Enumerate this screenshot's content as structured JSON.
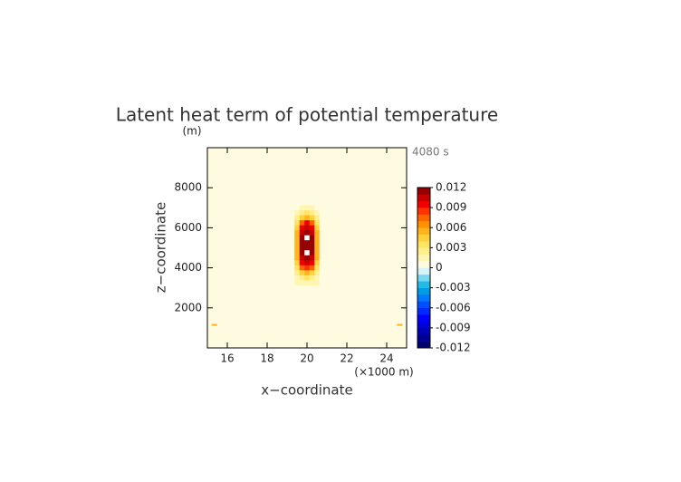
{
  "chart_data": {
    "type": "contour",
    "title": "Latent heat term of potential temperature",
    "y_unit_label": "(m)",
    "time_label": "4080 s",
    "xlabel": "x−coordinate",
    "ylabel": "z−coordinate",
    "x_unit_label": "(×1000 m)",
    "xlim": [
      15,
      25
    ],
    "xticks": [
      16,
      18,
      20,
      22,
      24
    ],
    "ylim": [
      0,
      10000
    ],
    "yticks": [
      2000,
      4000,
      6000,
      8000
    ],
    "field": {
      "fill_value": 0.0005,
      "x": [
        19.25,
        19.5,
        19.75,
        20,
        20.25,
        20.5,
        20.75
      ],
      "z": [
        7000,
        6750,
        6500,
        6250,
        6000,
        5750,
        5500,
        5250,
        5000,
        4750,
        4500,
        4250,
        4000,
        3750,
        3500,
        3250
      ],
      "values": [
        [
          0.0005,
          0.0005,
          0.0015,
          0.0015,
          0.0015,
          0.0005,
          0.0005
        ],
        [
          0.0005,
          0.0015,
          0.0025,
          0.003,
          0.0025,
          0.0015,
          0.0005
        ],
        [
          0.0005,
          0.002,
          0.004,
          0.005,
          0.004,
          0.002,
          0.0005
        ],
        [
          0.0005,
          0.003,
          0.007,
          0.009,
          0.007,
          0.003,
          0.0005
        ],
        [
          0.0005,
          0.004,
          0.009,
          0.0105,
          0.009,
          0.004,
          0.0005
        ],
        [
          0.0005,
          0.005,
          0.0105,
          0.0115,
          0.0105,
          0.005,
          0.0005
        ],
        [
          0.0005,
          0.005,
          0.011,
          0.013,
          0.011,
          0.005,
          0.0005
        ],
        [
          0.0005,
          0.005,
          0.011,
          0.0115,
          0.011,
          0.005,
          0.0005
        ],
        [
          0.0005,
          0.005,
          0.011,
          0.0115,
          0.011,
          0.005,
          0.0005
        ],
        [
          0.0005,
          0.005,
          0.011,
          0.013,
          0.011,
          0.005,
          0.0005
        ],
        [
          0.0005,
          0.005,
          0.0105,
          0.0115,
          0.0105,
          0.005,
          0.0005
        ],
        [
          0.0005,
          0.004,
          0.009,
          0.0105,
          0.009,
          0.004,
          0.0005
        ],
        [
          0.0005,
          0.003,
          0.007,
          0.008,
          0.007,
          0.003,
          0.0005
        ],
        [
          0.0005,
          0.002,
          0.004,
          0.005,
          0.004,
          0.002,
          0.0005
        ],
        [
          0.0005,
          0.0015,
          0.0025,
          0.003,
          0.0025,
          0.0015,
          0.0005
        ],
        [
          0.0005,
          0.0015,
          0.0015,
          0.0015,
          0.0015,
          0.0015,
          0.0005
        ]
      ]
    },
    "spots": [
      {
        "x": 15.35,
        "z": 1150,
        "value": 0.005
      },
      {
        "x": 24.65,
        "z": 1150,
        "value": 0.005
      }
    ],
    "levels": [
      -0.012,
      -0.011,
      -0.01,
      -0.009,
      -0.008,
      -0.007,
      -0.006,
      -0.005,
      -0.004,
      -0.003,
      -0.002,
      -0.001,
      0,
      0.001,
      0.002,
      0.003,
      0.004,
      0.005,
      0.006,
      0.007,
      0.008,
      0.009,
      0.01,
      0.011,
      0.012
    ],
    "colors": [
      "#00006e",
      "#000090",
      "#0000b4",
      "#0000dc",
      "#0000ff",
      "#0028ff",
      "#0050ff",
      "#0078ff",
      "#009ce6",
      "#20bce6",
      "#78d8f0",
      "#d4f4fa",
      "#fffbe0",
      "#fff6b4",
      "#ffee8c",
      "#ffe464",
      "#ffd23c",
      "#ffb41e",
      "#ff9000",
      "#ff6400",
      "#ff3200",
      "#f00000",
      "#c80000",
      "#960000"
    ],
    "cbar_ticks": [
      0.012,
      0.009,
      0.006,
      0.003,
      0,
      -0.003,
      -0.006,
      -0.009,
      -0.012
    ]
  }
}
